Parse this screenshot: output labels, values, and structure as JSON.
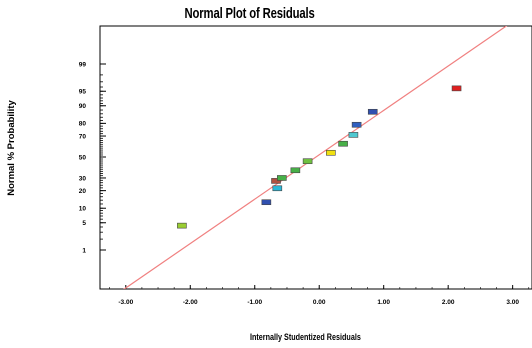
{
  "chart_data": {
    "type": "scatter",
    "title": "Normal Plot of Residuals",
    "xlabel": "Internally Studentized Residuals",
    "ylabel": "Normal % Probability",
    "xlim": [
      -3.4,
      3.3
    ],
    "x_ticks": [
      -3.0,
      -2.0,
      -1.0,
      0.0,
      1.0,
      2.0,
      3.0
    ],
    "x_tick_labels": [
      "-3.00",
      "-2.00",
      "-1.00",
      "0.00",
      "1.00",
      "2.00",
      "3.00"
    ],
    "y_ticks": [
      1,
      5,
      10,
      20,
      30,
      50,
      70,
      80,
      90,
      95,
      99
    ],
    "y_tick_labels": [
      "1",
      "5",
      "10",
      "20",
      "30",
      "50",
      "70",
      "80",
      "90",
      "95",
      "99"
    ],
    "y_scale": "normal-probability",
    "grid": false,
    "reference_line": {
      "color": "#f08080",
      "points": [
        [
          -3.4,
          0.01
        ],
        [
          3.3,
          99.99
        ]
      ]
    },
    "points": [
      {
        "x": -2.13,
        "y": 4.3,
        "color": "#9acd32"
      },
      {
        "x": -0.82,
        "y": 12.9,
        "color": "#3050b0"
      },
      {
        "x": -0.65,
        "y": 21.7,
        "color": "#2ab8d8"
      },
      {
        "x": -0.67,
        "y": 27.5,
        "color": "#b05040"
      },
      {
        "x": -0.58,
        "y": 30.0,
        "color": "#48b048"
      },
      {
        "x": -0.37,
        "y": 37.0,
        "color": "#48b048"
      },
      {
        "x": -0.18,
        "y": 45.8,
        "color": "#70c040"
      },
      {
        "x": 0.18,
        "y": 54.2,
        "color": "#f0e010"
      },
      {
        "x": 0.37,
        "y": 63.0,
        "color": "#48b048"
      },
      {
        "x": 0.53,
        "y": 71.0,
        "color": "#50c8d0"
      },
      {
        "x": 0.58,
        "y": 79.0,
        "color": "#3060c0"
      },
      {
        "x": 0.83,
        "y": 87.1,
        "color": "#3050b0"
      },
      {
        "x": 2.13,
        "y": 95.7,
        "color": "#e02020"
      }
    ]
  }
}
